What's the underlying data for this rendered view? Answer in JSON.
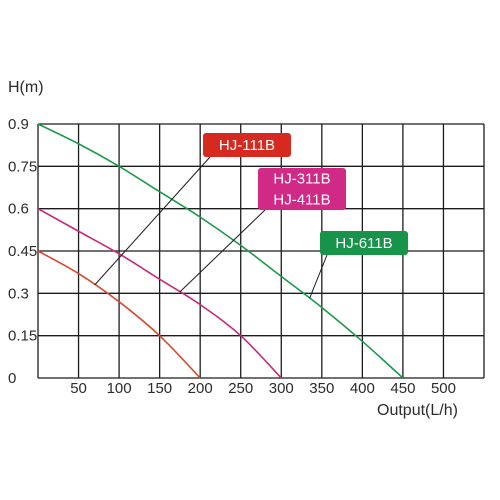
{
  "chart_data": {
    "type": "line",
    "title": "",
    "ylabel": "H(m)",
    "xlabel": "Output(L/h)",
    "xlim": [
      0,
      550
    ],
    "ylim": [
      0,
      0.9
    ],
    "x_ticks": [
      50,
      100,
      150,
      200,
      250,
      300,
      350,
      400,
      450,
      500
    ],
    "y_ticks": [
      0,
      0.15,
      0.3,
      0.45,
      0.6,
      0.75,
      0.9
    ],
    "y_tick_labels": [
      "0",
      "0.15",
      "0.3",
      "0.45",
      "0.6",
      "0.75",
      "0.9"
    ],
    "grid": true,
    "series": [
      {
        "name": "HJ-111B",
        "color": "#d9482a",
        "x": [
          0,
          50,
          100,
          150,
          200
        ],
        "y": [
          0.45,
          0.37,
          0.27,
          0.15,
          0
        ]
      },
      {
        "name": "HJ-311B / HJ-411B",
        "color": "#c8287a",
        "x": [
          0,
          50,
          100,
          150,
          200,
          250,
          300
        ],
        "y": [
          0.6,
          0.52,
          0.44,
          0.35,
          0.26,
          0.15,
          0
        ]
      },
      {
        "name": "HJ-611B",
        "color": "#1a9a4a",
        "x": [
          0,
          50,
          100,
          150,
          200,
          250,
          300,
          350,
          400,
          450
        ],
        "y": [
          0.9,
          0.83,
          0.75,
          0.66,
          0.57,
          0.47,
          0.36,
          0.25,
          0.13,
          0
        ]
      }
    ],
    "annotations": [
      {
        "labels": [
          "HJ-111B"
        ],
        "bg": "#d62a20",
        "series": 0,
        "target_x": 70
      },
      {
        "labels": [
          "HJ-311B",
          "HJ-411B"
        ],
        "bg": "#d02a86",
        "series": 1,
        "target_x": 175
      },
      {
        "labels": [
          "HJ-611B"
        ],
        "bg": "#17934a",
        "series": 2,
        "target_x": 335
      }
    ]
  }
}
